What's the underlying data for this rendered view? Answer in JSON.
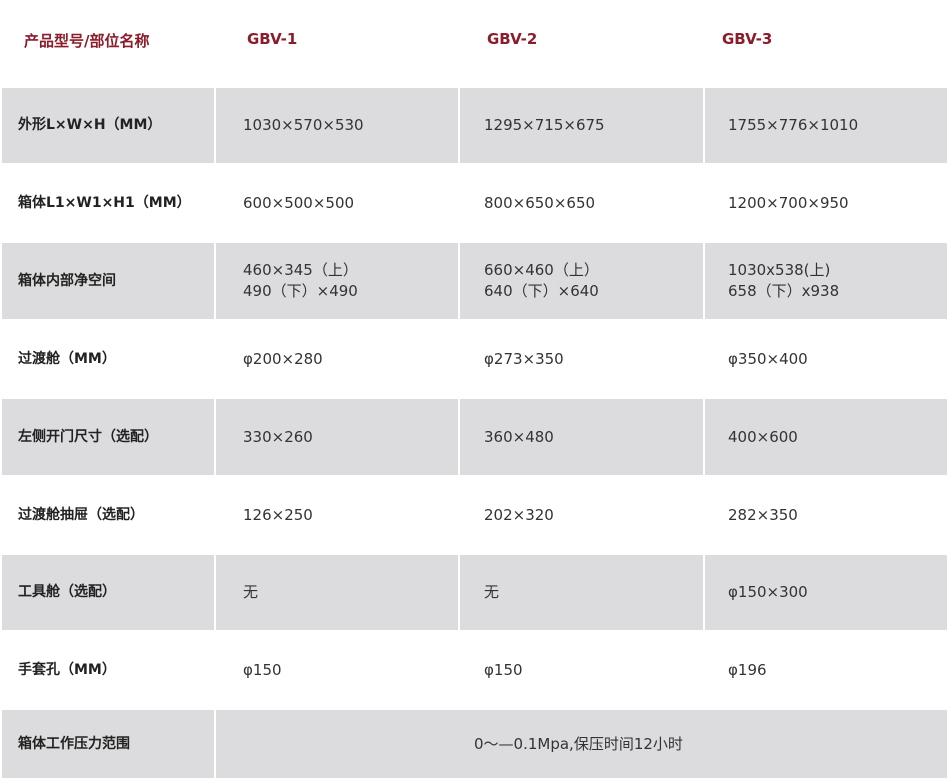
{
  "header": {
    "label": "产品型号/部位名称",
    "models": [
      "GBV-1",
      "GBV-2",
      "GBV-3"
    ]
  },
  "rows": [
    {
      "label": "外形L×W×H（MM）",
      "values": [
        "1030×570×530",
        "1295×715×675",
        "1755×776×1010"
      ]
    },
    {
      "label": "箱体L1×W1×H1（MM）",
      "values": [
        "600×500×500",
        "800×650×650",
        "1200×700×950"
      ]
    },
    {
      "label": "箱体内部净空间",
      "values": [
        "460×345（上）\n490（下）×490",
        "660×460（上）\n640（下）×640",
        "1030x538(上)\n658（下）x938"
      ]
    },
    {
      "label": "过渡舱（MM）",
      "values": [
        "φ200×280",
        "φ273×350",
        "φ350×400"
      ]
    },
    {
      "label": "左侧开门尺寸（选配）",
      "values": [
        "330×260",
        "360×480",
        "400×600"
      ]
    },
    {
      "label": "过渡舱抽屉（选配）",
      "values": [
        "126×250",
        "202×320",
        "282×350"
      ]
    },
    {
      "label": "工具舱（选配）",
      "values": [
        "无",
        "无",
        "φ150×300"
      ]
    },
    {
      "label": "手套孔（MM）",
      "values": [
        "φ150",
        "φ150",
        "φ196"
      ]
    }
  ],
  "last_row": {
    "label": "箱体工作压力范围",
    "value": "0～—0.1Mpa,保压时间12小时"
  },
  "colors": {
    "header_text": "#8b1c2b",
    "stripe": "#dcdcde"
  }
}
